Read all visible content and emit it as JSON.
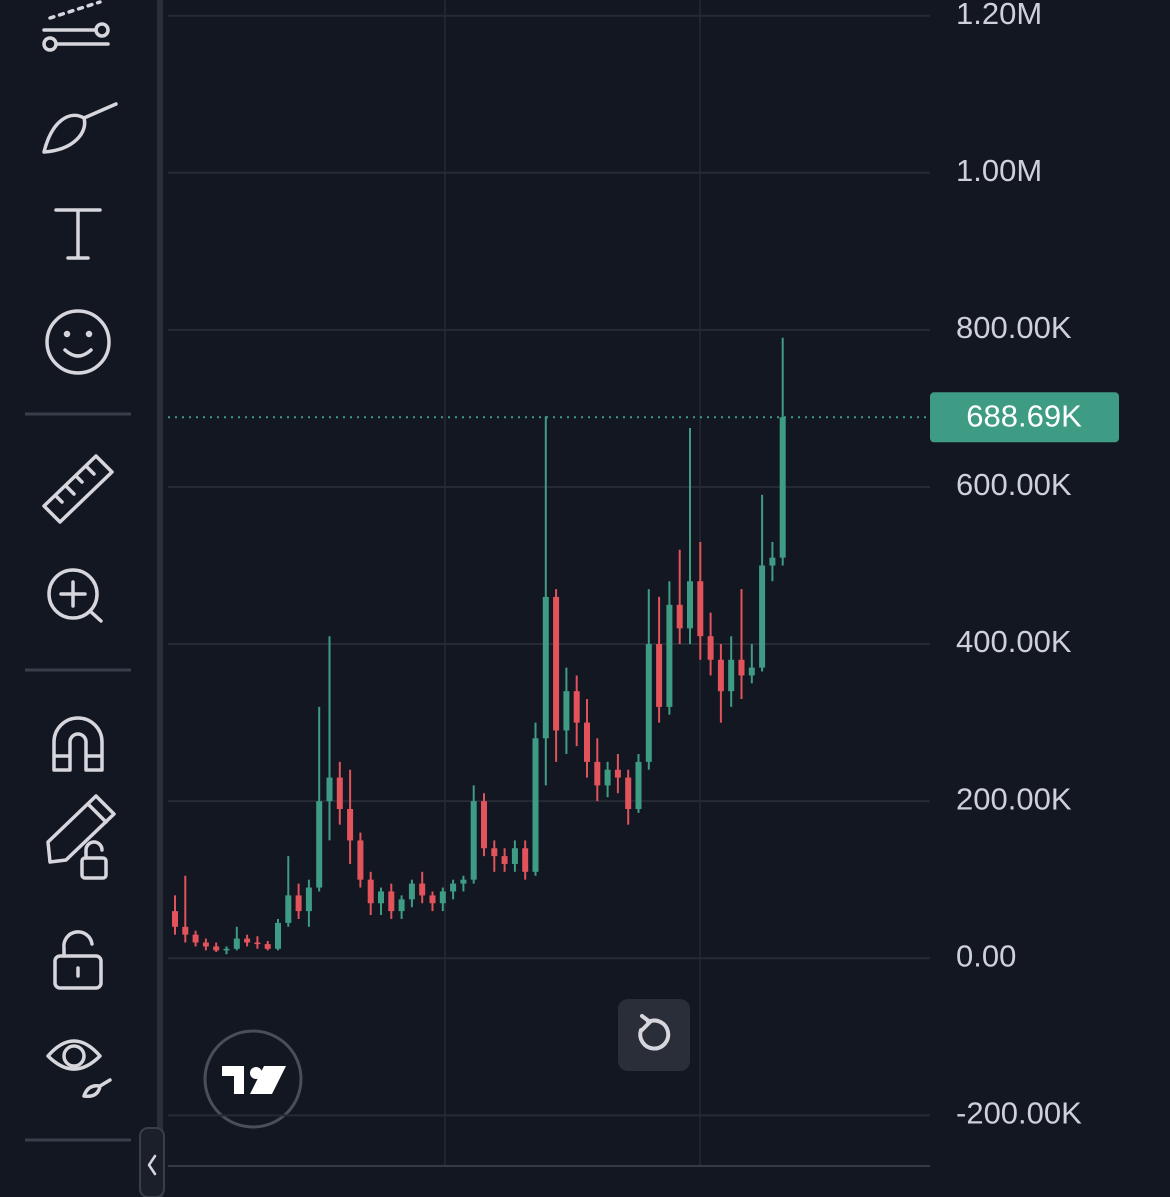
{
  "chart_data": {
    "type": "candlestick",
    "open": [
      60000,
      40000,
      30000,
      20000,
      15000,
      10000,
      12000,
      25000,
      20000,
      18000,
      12000,
      45000,
      80000,
      60000,
      90000,
      200000,
      230000,
      190000,
      150000,
      100000,
      70000,
      85000,
      60000,
      75000,
      95000,
      80000,
      70000,
      85000,
      95000,
      100000,
      200000,
      140000,
      130000,
      120000,
      140000,
      110000,
      280000,
      460000,
      290000,
      340000,
      300000,
      250000,
      220000,
      240000,
      230000,
      190000,
      250000,
      400000,
      320000,
      450000,
      420000,
      480000,
      410000,
      380000,
      340000,
      380000,
      360000,
      370000,
      500000,
      510000
    ],
    "high": [
      80000,
      105000,
      35000,
      25000,
      20000,
      15000,
      40000,
      30000,
      28000,
      22000,
      50000,
      130000,
      95000,
      100000,
      320000,
      410000,
      250000,
      240000,
      160000,
      110000,
      90000,
      95000,
      80000,
      100000,
      110000,
      85000,
      90000,
      100000,
      105000,
      220000,
      210000,
      150000,
      140000,
      150000,
      150000,
      300000,
      690000,
      470000,
      370000,
      360000,
      330000,
      280000,
      250000,
      260000,
      240000,
      260000,
      470000,
      460000,
      480000,
      520000,
      675000,
      530000,
      440000,
      400000,
      410000,
      470000,
      400000,
      590000,
      530000,
      790000
    ],
    "low": [
      30000,
      20000,
      15000,
      10000,
      8000,
      5000,
      10000,
      15000,
      12000,
      10000,
      10000,
      40000,
      50000,
      40000,
      85000,
      150000,
      170000,
      120000,
      90000,
      55000,
      55000,
      50000,
      50000,
      65000,
      70000,
      60000,
      60000,
      75000,
      85000,
      95000,
      130000,
      110000,
      110000,
      110000,
      100000,
      105000,
      220000,
      250000,
      260000,
      270000,
      230000,
      200000,
      205000,
      210000,
      170000,
      185000,
      240000,
      300000,
      310000,
      400000,
      400000,
      380000,
      360000,
      300000,
      320000,
      330000,
      350000,
      365000,
      480000,
      500000
    ],
    "close": [
      40000,
      30000,
      20000,
      15000,
      10000,
      12000,
      25000,
      20000,
      18000,
      12000,
      45000,
      80000,
      60000,
      90000,
      200000,
      230000,
      190000,
      150000,
      100000,
      70000,
      85000,
      60000,
      75000,
      95000,
      80000,
      70000,
      85000,
      95000,
      100000,
      200000,
      140000,
      130000,
      120000,
      140000,
      110000,
      280000,
      460000,
      290000,
      340000,
      300000,
      250000,
      220000,
      240000,
      230000,
      190000,
      250000,
      400000,
      320000,
      450000,
      420000,
      480000,
      410000,
      380000,
      340000,
      380000,
      360000,
      370000,
      500000,
      510000,
      688690
    ],
    "up_color": "#3f9c84",
    "down_color": "#e2535c",
    "ylim": [
      -304000,
      1220000
    ],
    "yticks": [
      {
        "value": -200000,
        "label": "-200.00K"
      },
      {
        "value": 0,
        "label": "0.00"
      },
      {
        "value": 200000,
        "label": "200.00K"
      },
      {
        "value": 400000,
        "label": "400.00K"
      },
      {
        "value": 600000,
        "label": "600.00K"
      },
      {
        "value": 800000,
        "label": "800.00K"
      },
      {
        "value": 1000000,
        "label": "1.00M"
      },
      {
        "value": 1200000,
        "label": "1.20M"
      }
    ],
    "grid": true,
    "last_price": {
      "value": 688690,
      "label": "688.69K"
    }
  }
}
